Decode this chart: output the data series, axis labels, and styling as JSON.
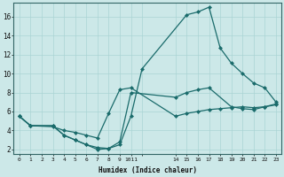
{
  "xlabel": "Humidex (Indice chaleur)",
  "bg_color": "#cce8e8",
  "grid_color": "#aad4d4",
  "line_color": "#1a6b6b",
  "line1_x": [
    0,
    1,
    3,
    4,
    5,
    6,
    7,
    8,
    9,
    10,
    11,
    15,
    16,
    17,
    18,
    19,
    20,
    21,
    22,
    23
  ],
  "line1_y": [
    5.5,
    4.5,
    4.5,
    3.5,
    3.0,
    2.5,
    2.0,
    2.1,
    2.5,
    5.5,
    10.5,
    16.2,
    16.5,
    17.0,
    12.7,
    11.1,
    10.0,
    9.0,
    8.5,
    7.0
  ],
  "line2_x": [
    0,
    1,
    3,
    4,
    5,
    6,
    7,
    8,
    9,
    10,
    14,
    15,
    16,
    17,
    19,
    20,
    21,
    22,
    23
  ],
  "line2_y": [
    5.5,
    4.5,
    4.5,
    3.5,
    3.0,
    2.5,
    2.2,
    2.1,
    2.8,
    8.0,
    7.5,
    8.0,
    8.3,
    8.5,
    6.5,
    6.3,
    6.2,
    6.5,
    6.8
  ],
  "line3_x": [
    0,
    1,
    3,
    4,
    5,
    6,
    7,
    8,
    9,
    10,
    14,
    15,
    16,
    17,
    18,
    19,
    20,
    21,
    22,
    23
  ],
  "line3_y": [
    5.5,
    4.5,
    4.4,
    4.0,
    3.8,
    3.5,
    3.2,
    5.8,
    8.3,
    8.5,
    5.5,
    5.8,
    6.0,
    6.2,
    6.3,
    6.4,
    6.5,
    6.4,
    6.5,
    6.7
  ],
  "xtick_positions": [
    0,
    1,
    2,
    3,
    4,
    5,
    6,
    7,
    8,
    9,
    10,
    11,
    14,
    15,
    16,
    17,
    18,
    19,
    20,
    21,
    22,
    23
  ],
  "xtick_labels": [
    "0",
    "1",
    "2",
    "3",
    "4",
    "5",
    "6",
    "7",
    "8",
    "9",
    "1011",
    "",
    "14",
    "15",
    "16",
    "17",
    "18",
    "19",
    "20",
    "21",
    "22",
    "23"
  ],
  "yticks": [
    2,
    4,
    6,
    8,
    10,
    12,
    14,
    16
  ],
  "xlim": [
    -0.5,
    23.5
  ],
  "ylim": [
    1.5,
    17.5
  ]
}
